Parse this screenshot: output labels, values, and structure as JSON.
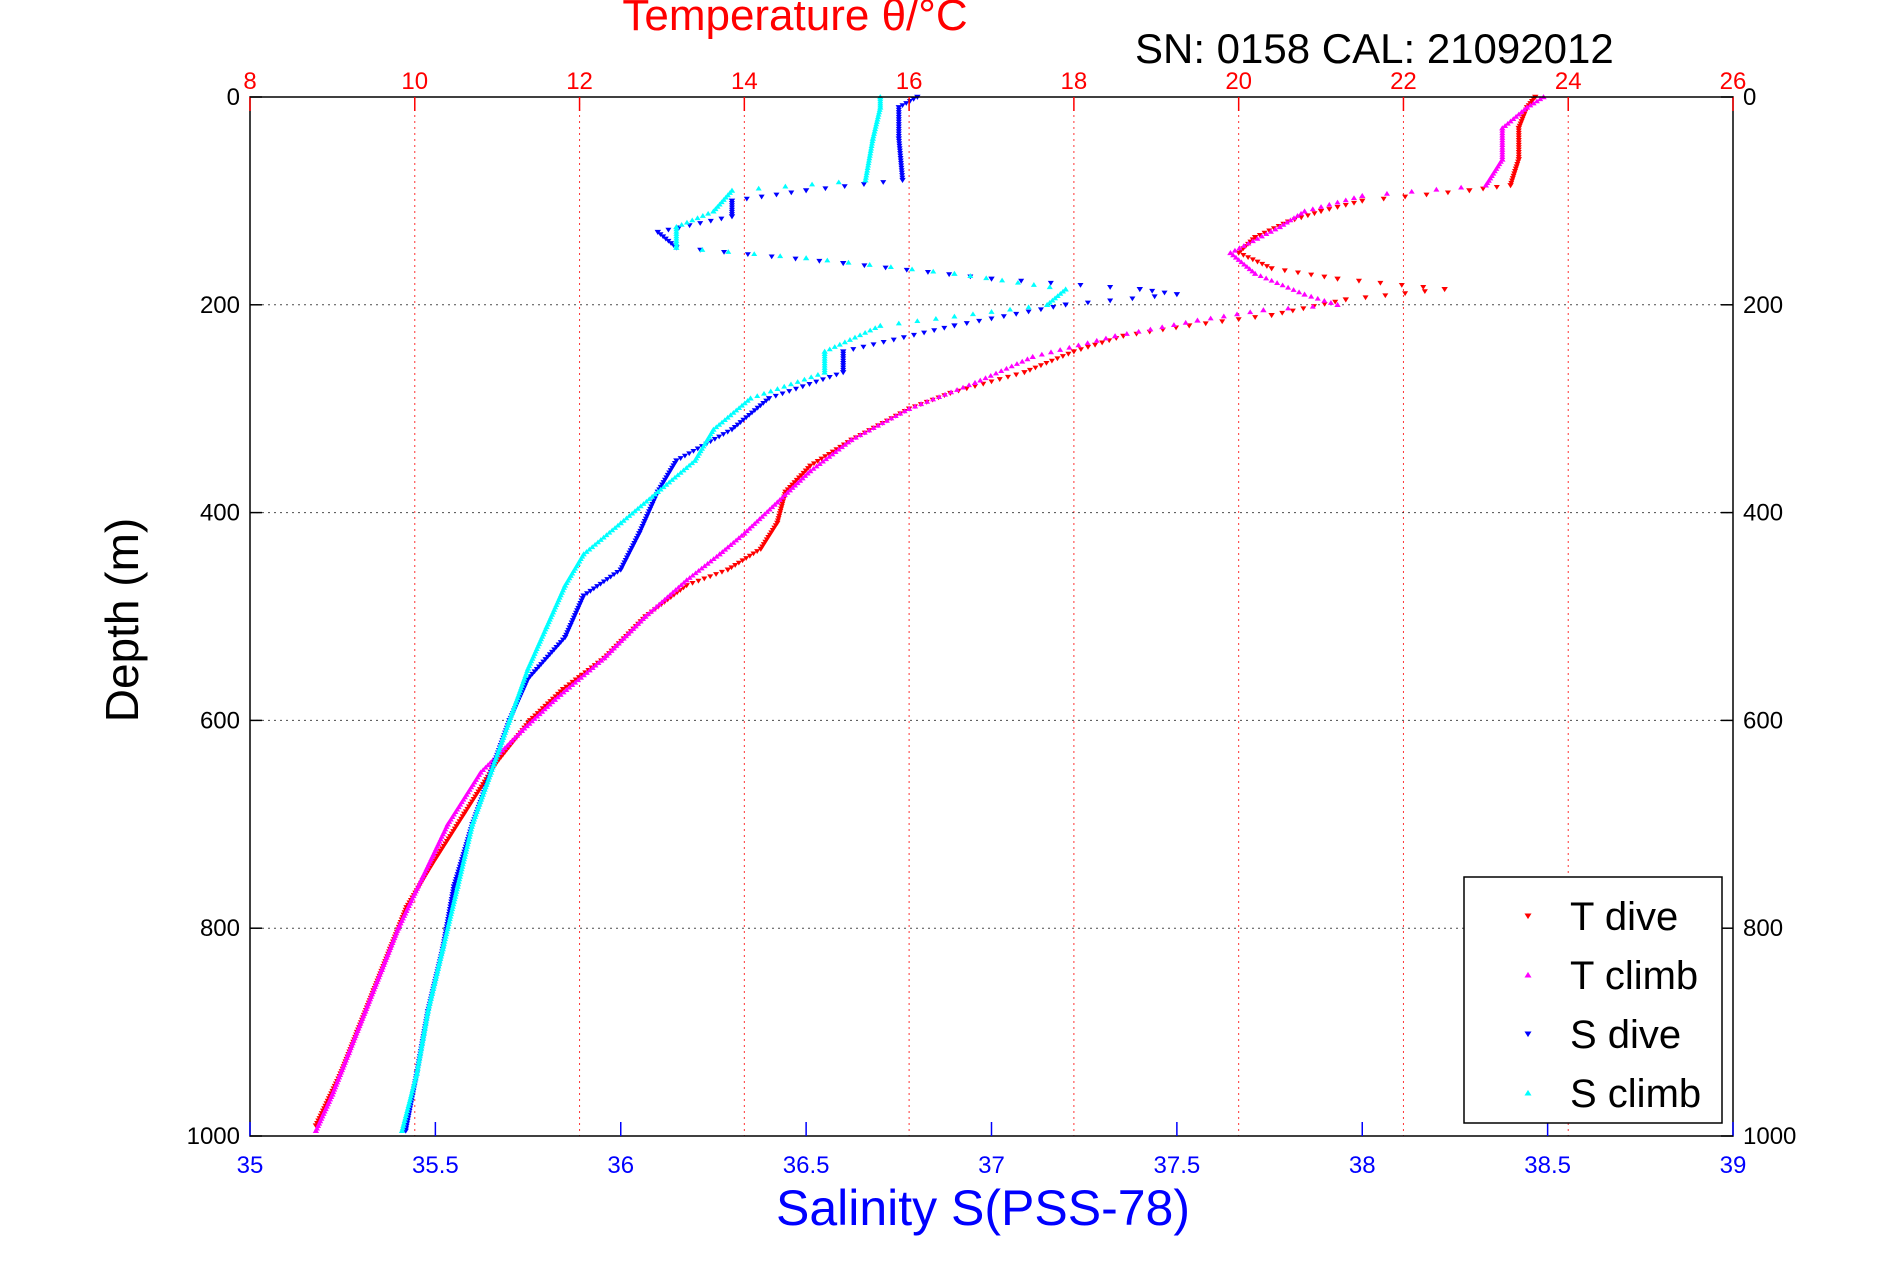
{
  "chart_data": {
    "type": "scatter",
    "title": "Temperature θ/°C",
    "subtitle": "SN: 0158  CAL: 21092012",
    "xlabel": "Salinity S(PSS-78)",
    "ylabel": "Depth (m)",
    "y_reversed": true,
    "ylim": [
      0,
      1000
    ],
    "y_ticks": [
      "0",
      "200",
      "400",
      "600",
      "800",
      "1000"
    ],
    "y_tick_values": [
      0,
      200,
      400,
      600,
      800,
      1000
    ],
    "salinity_axis": {
      "position": "bottom",
      "color": "#0000ff",
      "lim": [
        35,
        39
      ],
      "ticks": [
        "35",
        "35.5",
        "36",
        "36.5",
        "37",
        "37.5",
        "38",
        "38.5",
        "39"
      ],
      "tick_values": [
        35,
        35.5,
        36,
        36.5,
        37,
        37.5,
        38,
        38.5,
        39
      ]
    },
    "temperature_axis": {
      "position": "top",
      "color": "#ff0000",
      "lim": [
        8,
        26
      ],
      "ticks": [
        "8",
        "10",
        "12",
        "14",
        "16",
        "18",
        "20",
        "22",
        "24",
        "26"
      ],
      "tick_values": [
        8,
        10,
        12,
        14,
        16,
        18,
        20,
        22,
        24,
        26
      ],
      "grid": true
    },
    "grid": true,
    "legend_position": "bottom-right",
    "series": [
      {
        "name": "T dive",
        "axis": "temperature",
        "color": "#ff0000",
        "marker": "triangle-down",
        "points": [
          [
            23.6,
            0
          ],
          [
            23.5,
            10
          ],
          [
            23.4,
            30
          ],
          [
            23.4,
            60
          ],
          [
            23.3,
            85
          ],
          [
            22.8,
            90
          ],
          [
            21.5,
            100
          ],
          [
            21.0,
            110
          ],
          [
            20.6,
            120
          ],
          [
            20.2,
            135
          ],
          [
            20.0,
            150
          ],
          [
            20.4,
            165
          ],
          [
            21.2,
            175
          ],
          [
            22.5,
            185
          ],
          [
            21.3,
            195
          ],
          [
            20.4,
            210
          ],
          [
            19.4,
            220
          ],
          [
            18.6,
            230
          ],
          [
            18.0,
            245
          ],
          [
            17.4,
            265
          ],
          [
            16.5,
            285
          ],
          [
            16.0,
            300
          ],
          [
            15.3,
            330
          ],
          [
            14.8,
            355
          ],
          [
            14.5,
            380
          ],
          [
            14.4,
            410
          ],
          [
            14.2,
            435
          ],
          [
            13.8,
            455
          ],
          [
            13.3,
            470
          ],
          [
            12.8,
            500
          ],
          [
            12.3,
            540
          ],
          [
            11.8,
            570
          ],
          [
            11.4,
            600
          ],
          [
            11.0,
            640
          ],
          [
            10.6,
            690
          ],
          [
            10.2,
            740
          ],
          [
            9.9,
            780
          ],
          [
            9.7,
            820
          ],
          [
            9.5,
            860
          ],
          [
            9.3,
            900
          ],
          [
            9.1,
            940
          ],
          [
            8.8,
            990
          ]
        ]
      },
      {
        "name": "T climb",
        "axis": "temperature",
        "color": "#ff00ff",
        "marker": "triangle-up",
        "points": [
          [
            23.7,
            0
          ],
          [
            23.5,
            10
          ],
          [
            23.2,
            30
          ],
          [
            23.2,
            60
          ],
          [
            23.0,
            85
          ],
          [
            21.5,
            95
          ],
          [
            20.8,
            110
          ],
          [
            20.5,
            125
          ],
          [
            19.9,
            150
          ],
          [
            20.2,
            170
          ],
          [
            20.8,
            190
          ],
          [
            21.2,
            200
          ],
          [
            20.3,
            205
          ],
          [
            19.5,
            215
          ],
          [
            18.5,
            230
          ],
          [
            17.5,
            250
          ],
          [
            16.8,
            275
          ],
          [
            16.0,
            300
          ],
          [
            15.3,
            330
          ],
          [
            14.8,
            360
          ],
          [
            14.4,
            390
          ],
          [
            14.0,
            420
          ],
          [
            13.7,
            440
          ],
          [
            13.3,
            465
          ],
          [
            12.8,
            500
          ],
          [
            12.3,
            540
          ],
          [
            11.7,
            580
          ],
          [
            11.3,
            610
          ],
          [
            10.8,
            650
          ],
          [
            10.4,
            700
          ],
          [
            10.1,
            750
          ],
          [
            9.8,
            800
          ],
          [
            9.6,
            840
          ],
          [
            9.4,
            880
          ],
          [
            9.2,
            920
          ],
          [
            9.0,
            960
          ],
          [
            8.8,
            995
          ]
        ]
      },
      {
        "name": "S dive",
        "axis": "salinity",
        "color": "#0000ff",
        "marker": "triangle-down",
        "points": [
          [
            36.8,
            0
          ],
          [
            36.75,
            10
          ],
          [
            36.75,
            40
          ],
          [
            36.76,
            80
          ],
          [
            36.5,
            90
          ],
          [
            36.3,
            100
          ],
          [
            36.3,
            115
          ],
          [
            36.1,
            130
          ],
          [
            36.15,
            145
          ],
          [
            36.6,
            160
          ],
          [
            37.0,
            175
          ],
          [
            37.4,
            185
          ],
          [
            37.5,
            190
          ],
          [
            37.2,
            200
          ],
          [
            36.9,
            220
          ],
          [
            36.6,
            245
          ],
          [
            36.6,
            265
          ],
          [
            36.4,
            290
          ],
          [
            36.3,
            320
          ],
          [
            36.15,
            350
          ],
          [
            36.1,
            380
          ],
          [
            36.05,
            420
          ],
          [
            36.0,
            455
          ],
          [
            35.9,
            480
          ],
          [
            35.85,
            520
          ],
          [
            35.75,
            560
          ],
          [
            35.7,
            600
          ],
          [
            35.65,
            650
          ],
          [
            35.6,
            700
          ],
          [
            35.55,
            760
          ],
          [
            35.52,
            820
          ],
          [
            35.48,
            880
          ],
          [
            35.45,
            940
          ],
          [
            35.42,
            995
          ]
        ]
      },
      {
        "name": "S climb",
        "axis": "salinity",
        "color": "#00ffff",
        "marker": "triangle-up",
        "points": [
          [
            36.7,
            0
          ],
          [
            36.7,
            10
          ],
          [
            36.68,
            40
          ],
          [
            36.66,
            80
          ],
          [
            36.3,
            90
          ],
          [
            36.25,
            110
          ],
          [
            36.15,
            125
          ],
          [
            36.15,
            145
          ],
          [
            36.5,
            155
          ],
          [
            36.9,
            170
          ],
          [
            37.2,
            185
          ],
          [
            37.15,
            200
          ],
          [
            36.7,
            220
          ],
          [
            36.55,
            245
          ],
          [
            36.55,
            265
          ],
          [
            36.35,
            290
          ],
          [
            36.25,
            320
          ],
          [
            36.2,
            350
          ],
          [
            36.1,
            380
          ],
          [
            36.0,
            410
          ],
          [
            35.9,
            440
          ],
          [
            35.85,
            470
          ],
          [
            35.8,
            510
          ],
          [
            35.75,
            550
          ],
          [
            35.7,
            600
          ],
          [
            35.65,
            650
          ],
          [
            35.6,
            700
          ],
          [
            35.56,
            760
          ],
          [
            35.52,
            820
          ],
          [
            35.48,
            880
          ],
          [
            35.45,
            940
          ],
          [
            35.41,
            995
          ]
        ]
      }
    ]
  }
}
